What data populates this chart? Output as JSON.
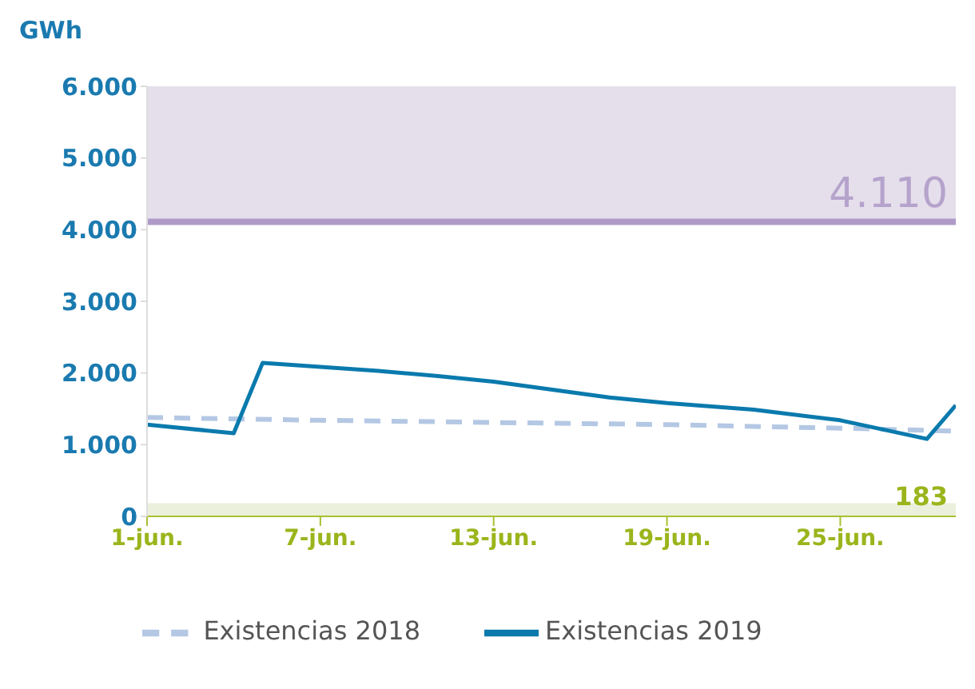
{
  "chart_data": {
    "type": "line",
    "ylabel": "GWh",
    "x": [
      "--06-01",
      "--06-04",
      "--06-05",
      "--06-09",
      "--06-11",
      "--06-13",
      "--06-17",
      "--06-19",
      "--06-22",
      "--06-25",
      "--06-28",
      "--06-29"
    ],
    "series": [
      {
        "name": "Existencias 2018",
        "color": "#b4c8e4",
        "line_style": "dashed",
        "x": [
          "--06-01",
          "--06-07",
          "--06-13",
          "--06-19",
          "--06-25",
          "--06-29"
        ],
        "values": [
          1380,
          1340,
          1310,
          1280,
          1230,
          1190
        ]
      },
      {
        "name": "Existencias 2019",
        "color": "#0a7aad",
        "line_style": "solid",
        "values": [
          1280,
          1160,
          2140,
          2030,
          1960,
          1880,
          1660,
          1580,
          1490,
          1340,
          1080,
          1550
        ]
      }
    ],
    "xlim": [
      "--06-01",
      "--06-29"
    ],
    "xticks": [
      {
        "value": "--06-01",
        "label": "1-jun."
      },
      {
        "value": "--06-07",
        "label": "7-jun."
      },
      {
        "value": "--06-13",
        "label": "13-jun."
      },
      {
        "value": "--06-19",
        "label": "19-jun."
      },
      {
        "value": "--06-25",
        "label": "25-jun."
      }
    ],
    "ylim": [
      0,
      6000
    ],
    "yticks": [
      {
        "value": 0,
        "label": "0"
      },
      {
        "value": 1000,
        "label": "1.000"
      },
      {
        "value": 2000,
        "label": "2.000"
      },
      {
        "value": 3000,
        "label": "3.000"
      },
      {
        "value": 4000,
        "label": "4.000"
      },
      {
        "value": 5000,
        "label": "5.000"
      },
      {
        "value": 6000,
        "label": "6.000"
      }
    ],
    "bands": [
      {
        "axis": "y",
        "from": 4110,
        "to": 6000,
        "label": "4.110",
        "color": "#e5dfec"
      },
      {
        "axis": "y",
        "from": 0,
        "to": 183,
        "label": "183",
        "color": "#ebf0dc"
      }
    ],
    "ref_lines": [
      {
        "axis": "y",
        "value": 4110,
        "color": "#b09ac8"
      }
    ],
    "marker": "none",
    "legend": "bottom"
  }
}
